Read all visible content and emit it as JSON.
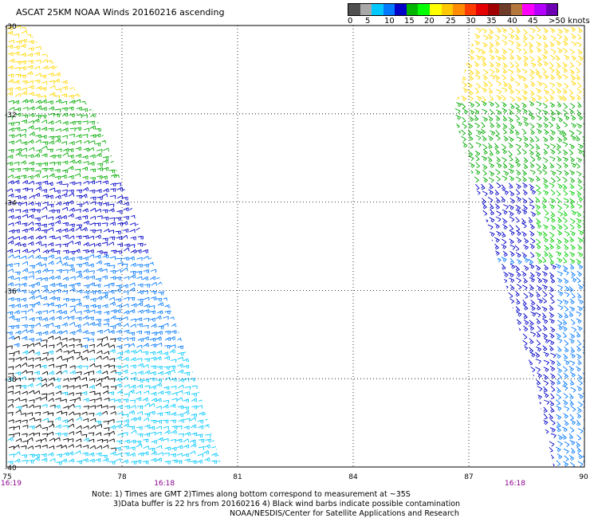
{
  "title": "ASCAT 25KM NOAA Winds 20160216 ascending",
  "legend": {
    "labels": [
      "0",
      "5",
      "10",
      "15",
      "20",
      "25",
      "30",
      "35",
      "40",
      "45",
      ">50 knots"
    ],
    "colors": [
      "#505050",
      "#a8a8a8",
      "#00c8ff",
      "#0078ff",
      "#0000c8",
      "#00b400",
      "#00ff00",
      "#ffff00",
      "#ffc800",
      "#ff8c00",
      "#ff3c00",
      "#e60000",
      "#a00000",
      "#6e3c28",
      "#b4783c",
      "#ff00ff",
      "#b400ff",
      "#6e00b4"
    ]
  },
  "map": {
    "lon_range": [
      75,
      90
    ],
    "lat_range": [
      -40,
      -30
    ],
    "lon_labels": [
      "75",
      "78",
      "81",
      "84",
      "87",
      "90"
    ],
    "lat_labels": [
      "-30",
      "-32",
      "-34",
      "-36",
      "-38",
      "-40"
    ],
    "time_labels": [
      "16:19",
      "16:18",
      "16:18"
    ],
    "time_color": "#8b008b",
    "swaths": [
      {
        "name": "west-swath",
        "poly_lonlat": [
          [
            75,
            -30
          ],
          [
            75.45,
            -30
          ],
          [
            77.3,
            -32
          ],
          [
            78.2,
            -34
          ],
          [
            79.1,
            -36
          ],
          [
            79.9,
            -38
          ],
          [
            80.6,
            -40
          ],
          [
            75,
            -40
          ]
        ]
      },
      {
        "name": "east-swath",
        "poly_lonlat": [
          [
            87.2,
            -30
          ],
          [
            90,
            -30
          ],
          [
            90,
            -40
          ],
          [
            89.2,
            -40
          ],
          [
            88.7,
            -38
          ],
          [
            88.0,
            -36
          ],
          [
            87.3,
            -34
          ],
          [
            86.6,
            -32
          ]
        ]
      }
    ],
    "speed_bands": [
      {
        "lat_from": -30,
        "lat_to": -31.6,
        "color": "#ffd700"
      },
      {
        "lat_from": -31.6,
        "lat_to": -33.5,
        "color": "#00aa00"
      },
      {
        "lat_from": -33.5,
        "lat_to": -35.2,
        "color": "#0000c8"
      },
      {
        "lat_from": -35.2,
        "lat_to": -37.4,
        "color": "#0078ff"
      },
      {
        "lat_from": -37.4,
        "lat_to": -40,
        "color": "#00c8ff"
      }
    ],
    "contaminated_color": "#000000"
  },
  "notes": [
    "Note: 1) Times are GMT 2)Times along bottom correspond to measurement at ~35S",
    "3)Data buffer is 22 hrs from 20160216 4) Black wind barbs indicate possible contamination",
    "NOAA/NESDIS/Center for Satellite Applications and Research"
  ]
}
